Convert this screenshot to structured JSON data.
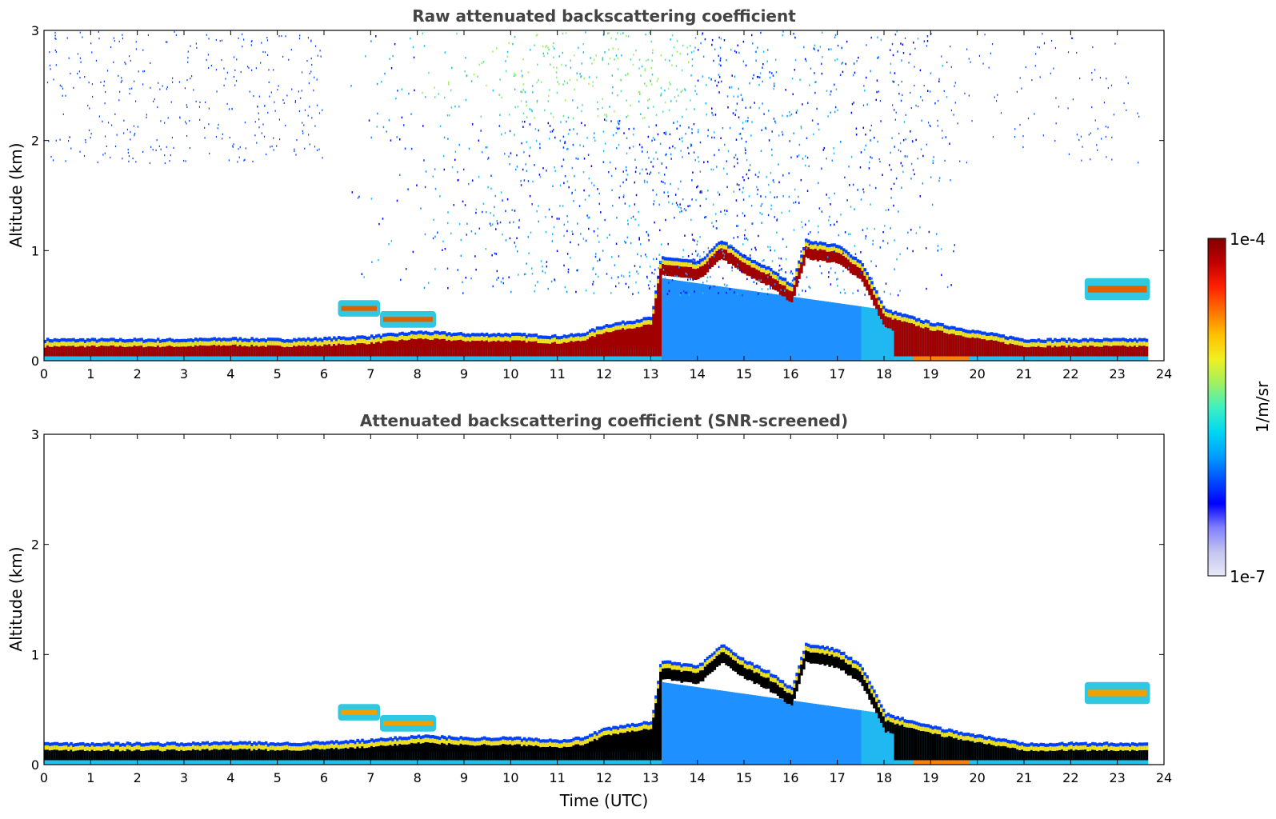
{
  "chart_data": [
    {
      "type": "heatmap",
      "title": "Raw attenuated backscattering coefficient",
      "xlabel": "",
      "ylabel": "Altitude (km)",
      "xlim": [
        0,
        24
      ],
      "ylim": [
        0,
        3
      ],
      "x_ticks": [
        "0",
        "1",
        "2",
        "3",
        "4",
        "5",
        "6",
        "7",
        "8",
        "9",
        "10",
        "11",
        "12",
        "13",
        "14",
        "15",
        "16",
        "17",
        "18",
        "19",
        "20",
        "21",
        "22",
        "23",
        "24"
      ],
      "y_ticks": [
        "0",
        "1",
        "2",
        "3"
      ],
      "grid": false,
      "layers": {
        "boundary_layer_top_km": [
          [
            0,
            0.15
          ],
          [
            1,
            0.15
          ],
          [
            2,
            0.15
          ],
          [
            3,
            0.15
          ],
          [
            4,
            0.16
          ],
          [
            5,
            0.15
          ],
          [
            6,
            0.16
          ],
          [
            7,
            0.18
          ],
          [
            8,
            0.22
          ],
          [
            9,
            0.2
          ],
          [
            10,
            0.2
          ],
          [
            11,
            0.18
          ],
          [
            11.5,
            0.2
          ],
          [
            12,
            0.28
          ],
          [
            13,
            0.35
          ],
          [
            13.2,
            0.9
          ],
          [
            14,
            0.85
          ],
          [
            14.5,
            1.05
          ],
          [
            15,
            0.9
          ],
          [
            15.5,
            0.8
          ],
          [
            16,
            0.65
          ],
          [
            16.3,
            1.05
          ],
          [
            17,
            1.0
          ],
          [
            17.5,
            0.85
          ],
          [
            18,
            0.42
          ],
          [
            19,
            0.3
          ],
          [
            20,
            0.22
          ],
          [
            21,
            0.15
          ],
          [
            22,
            0.15
          ],
          [
            23,
            0.15
          ],
          [
            23.65,
            0.15
          ]
        ],
        "residual_aerosol_patches_km": [
          {
            "x": [
              6.3,
              7.2
            ],
            "y": [
              0.4,
              0.55
            ]
          },
          {
            "x": [
              7.2,
              8.4
            ],
            "y": [
              0.3,
              0.45
            ]
          },
          {
            "x": [
              22.3,
              23.7
            ],
            "y": [
              0.55,
              0.75
            ]
          }
        ],
        "noise_region_km": {
          "x": [
            6.5,
            19.5
          ],
          "y": [
            0.6,
            3.0
          ]
        }
      }
    },
    {
      "type": "heatmap",
      "title": "Attenuated backscattering coefficient (SNR-screened)",
      "xlabel": "Time (UTC)",
      "ylabel": "Altitude (km)",
      "xlim": [
        0,
        24
      ],
      "ylim": [
        0,
        3
      ],
      "x_ticks": [
        "0",
        "1",
        "2",
        "3",
        "4",
        "5",
        "6",
        "7",
        "8",
        "9",
        "10",
        "11",
        "12",
        "13",
        "14",
        "15",
        "16",
        "17",
        "18",
        "19",
        "20",
        "21",
        "22",
        "23",
        "24"
      ],
      "y_ticks": [
        "0",
        "1",
        "2",
        "3"
      ],
      "grid": false,
      "saturated_color": "#000000"
    }
  ],
  "colorbar": {
    "label": "1/m/sr",
    "max_label": "1e-4",
    "min_label": "1e-7",
    "colors": [
      "#e8e8f8",
      "#c4c4f0",
      "#8080ff",
      "#0000ff",
      "#0050ff",
      "#00a0ff",
      "#00d8f0",
      "#40f0c0",
      "#a0f060",
      "#f0f020",
      "#ffc000",
      "#ff7000",
      "#ff2000",
      "#c00000",
      "#800000"
    ]
  }
}
